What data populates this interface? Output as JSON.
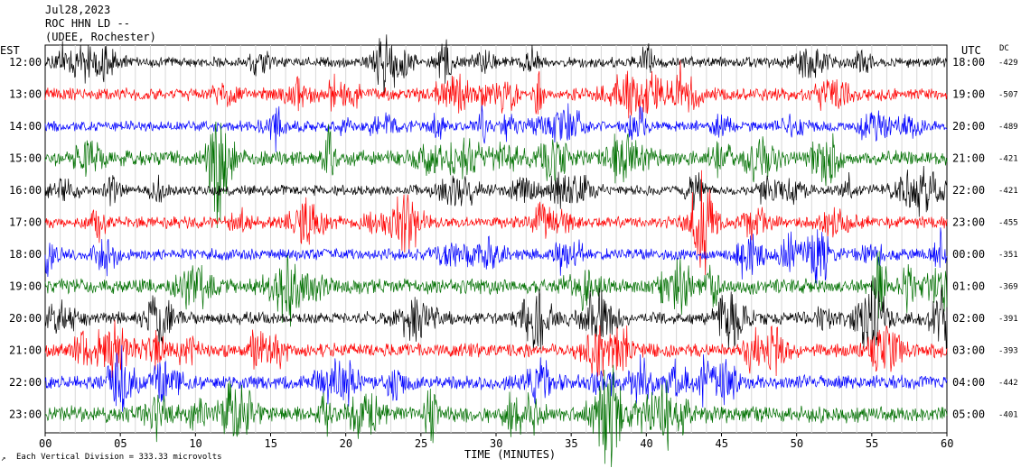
{
  "header": {
    "date": "Jul28,2023",
    "station": "ROC HHN LD --",
    "network": "(UDEE, Rochester)"
  },
  "left_axis_title": "EST",
  "right_axis_title": "UTC",
  "dc_title": "DC",
  "footnote": "Each Vertical Division =  333.33 microvolts",
  "chart_data": {
    "type": "line",
    "title": "",
    "xlabel": "TIME (MINUTES)",
    "xlim": [
      0,
      60
    ],
    "x_ticks": [
      "00",
      "05",
      "10",
      "15",
      "20",
      "25",
      "30",
      "35",
      "40",
      "45",
      "50",
      "55",
      "60"
    ],
    "grid": true,
    "colors": [
      "#000000",
      "#ff0000",
      "#0000ff",
      "#007000"
    ],
    "rows": [
      {
        "est": "12:00",
        "utc": "18:00",
        "dc": "-429",
        "color": "#000000",
        "amplitude": 0.45
      },
      {
        "est": "13:00",
        "utc": "19:00",
        "dc": "-507",
        "color": "#ff0000",
        "amplitude": 0.55
      },
      {
        "est": "14:00",
        "utc": "20:00",
        "dc": "-489",
        "color": "#0000ff",
        "amplitude": 0.45
      },
      {
        "est": "15:00",
        "utc": "21:00",
        "dc": "-421",
        "color": "#007000",
        "amplitude": 0.65
      },
      {
        "est": "16:00",
        "utc": "22:00",
        "dc": "-421",
        "color": "#000000",
        "amplitude": 0.45
      },
      {
        "est": "17:00",
        "utc": "23:00",
        "dc": "-455",
        "color": "#ff0000",
        "amplitude": 0.5
      },
      {
        "est": "18:00",
        "utc": "00:00",
        "dc": "-351",
        "color": "#0000ff",
        "amplitude": 0.5
      },
      {
        "est": "19:00",
        "utc": "01:00",
        "dc": "-369",
        "color": "#007000",
        "amplitude": 0.65
      },
      {
        "est": "20:00",
        "utc": "02:00",
        "dc": "-391",
        "color": "#000000",
        "amplitude": 0.55
      },
      {
        "est": "21:00",
        "utc": "03:00",
        "dc": "-393",
        "color": "#ff0000",
        "amplitude": 0.6
      },
      {
        "est": "22:00",
        "utc": "04:00",
        "dc": "-442",
        "color": "#0000ff",
        "amplitude": 0.6
      },
      {
        "est": "23:00",
        "utc": "05:00",
        "dc": "-401",
        "color": "#007000",
        "amplitude": 0.7
      }
    ]
  }
}
